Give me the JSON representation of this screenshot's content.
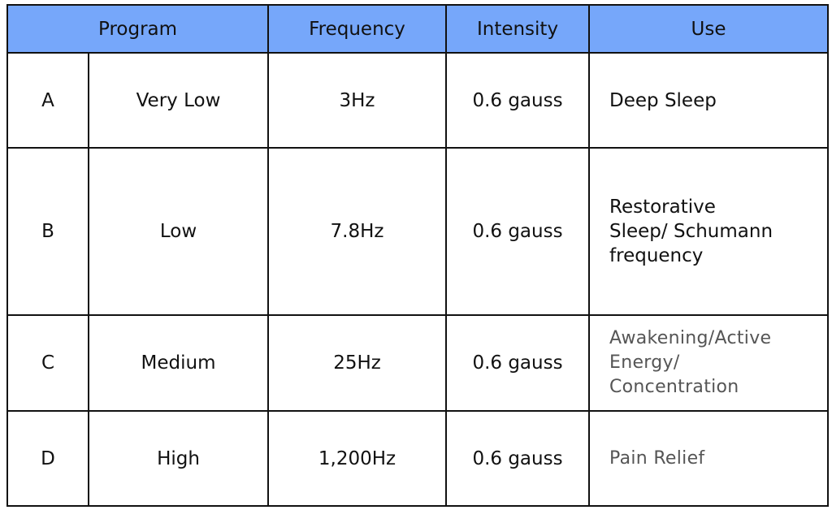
{
  "table": {
    "header": [
      "Program",
      "Frequency",
      "Intensity",
      "Use"
    ],
    "rows": [
      [
        "A",
        "Very Low",
        "3Hz",
        "0.6 gauss",
        [
          "Deep Sleep"
        ]
      ],
      [
        "B",
        "Low",
        "7.8Hz",
        "0.6 gauss",
        [
          "Restorative",
          "Sleep/ Schumann",
          "frequency"
        ]
      ],
      [
        "C",
        "Medium",
        "25Hz",
        "0.6 gauss",
        [
          "Awakening/Active",
          "Energy/",
          "Concentration"
        ]
      ],
      [
        "D",
        "High",
        "1,200Hz",
        "0.6 gauss",
        [
          "Pain Relief"
        ]
      ]
    ]
  }
}
